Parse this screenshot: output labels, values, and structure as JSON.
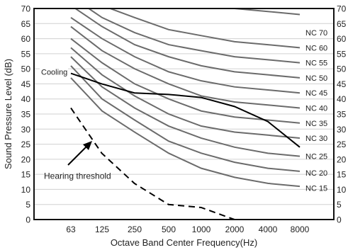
{
  "chart_data": {
    "type": "line",
    "title": "",
    "xlabel": "Octave Band Center Frequency(Hz)",
    "ylabel": "Sound Pressure Level (dB)",
    "categories": [
      "63",
      "125",
      "250",
      "500",
      "1000",
      "2000",
      "4000",
      "8000"
    ],
    "ylim": [
      0,
      70
    ],
    "yticks": [
      0,
      5,
      10,
      15,
      20,
      25,
      30,
      35,
      40,
      45,
      50,
      55,
      60,
      65,
      70
    ],
    "grid": true,
    "colors": {
      "nc": "#6b6b6b",
      "cooling": "#000000",
      "threshold": "#000000",
      "grid": "#d0d0d0"
    },
    "nc_curves": [
      {
        "name": "NC 15",
        "values": [
          47,
          36,
          29,
          22,
          17,
          14,
          12,
          11
        ]
      },
      {
        "name": "NC 20",
        "values": [
          51,
          40,
          33,
          26,
          22,
          19,
          17,
          16
        ]
      },
      {
        "name": "NC 25",
        "values": [
          54,
          44,
          37,
          31,
          27,
          24,
          22,
          21
        ]
      },
      {
        "name": "NC 30",
        "values": [
          57,
          48,
          41,
          35,
          31,
          29,
          28,
          27
        ]
      },
      {
        "name": "NC 35",
        "values": [
          60,
          52,
          45,
          40,
          36,
          34,
          33,
          32
        ]
      },
      {
        "name": "NC 40",
        "values": [
          64,
          56,
          50,
          45,
          41,
          39,
          38,
          37
        ]
      },
      {
        "name": "NC 45",
        "values": [
          67,
          60,
          54,
          49,
          46,
          44,
          43,
          42
        ]
      },
      {
        "name": "NC 50",
        "values": [
          71,
          64,
          58,
          54,
          51,
          49,
          48,
          47
        ]
      },
      {
        "name": "NC 55",
        "values": [
          74,
          67,
          62,
          58,
          56,
          54,
          53,
          52
        ]
      },
      {
        "name": "NC 60",
        "values": [
          77,
          71,
          67,
          63,
          61,
          59,
          58,
          57
        ]
      },
      {
        "name": "NC 70",
        "values": [
          83,
          79,
          75,
          72,
          71,
          70,
          69,
          68
        ]
      }
    ],
    "nc_labels": [
      {
        "text": "NC 70",
        "y": 62
      },
      {
        "text": "NC 60",
        "y": 57
      },
      {
        "text": "NC 55",
        "y": 52
      },
      {
        "text": "NC 50",
        "y": 47
      },
      {
        "text": "NC 45",
        "y": 42
      },
      {
        "text": "NC 40",
        "y": 37
      },
      {
        "text": "NC 35",
        "y": 32
      },
      {
        "text": "NC 30",
        "y": 27
      },
      {
        "text": "NC 25",
        "y": 21
      },
      {
        "text": "NC 20",
        "y": 15.5
      },
      {
        "text": "NC 15",
        "y": 10.5
      }
    ],
    "series": [
      {
        "name": "Cooling",
        "x": [
          63,
          125,
          250,
          500,
          1000,
          2000,
          4000,
          8000
        ],
        "values": [
          48.5,
          45,
          42,
          41.5,
          40.5,
          37.5,
          32.5,
          24
        ]
      },
      {
        "name": "Hearing threshold",
        "x": [
          63,
          125,
          250,
          500,
          1000,
          2000,
          4000
        ],
        "values": [
          37,
          22,
          12,
          5,
          4,
          0,
          0
        ]
      }
    ],
    "annotations": [
      {
        "text": "Cooling",
        "target_series": "Cooling"
      },
      {
        "text": "Hearing threshold",
        "target_series": "Hearing threshold"
      }
    ]
  }
}
